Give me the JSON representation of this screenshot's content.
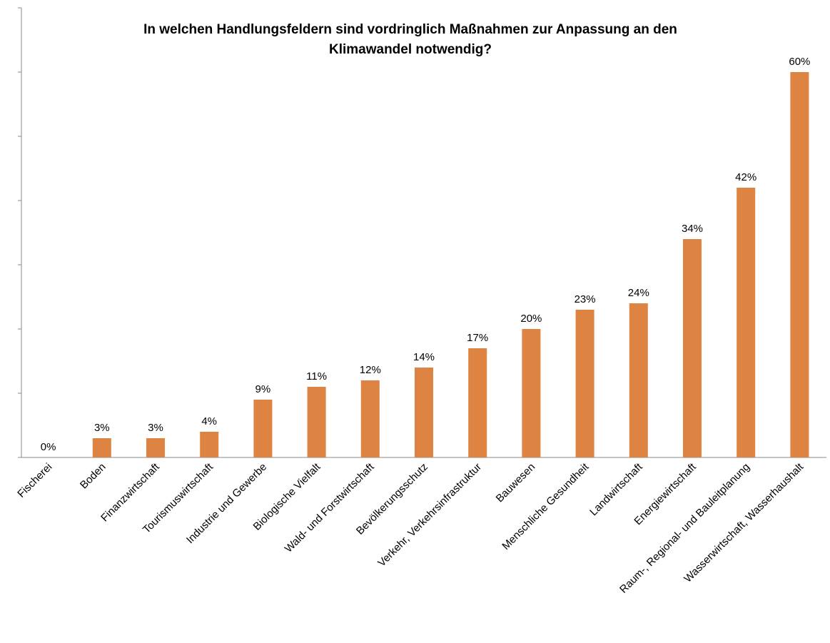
{
  "chart_data": {
    "type": "bar",
    "title": [
      "In welchen Handlungsfeldern sind vordringlich Maßnahmen zur Anpassung an den",
      "Klimawandel notwendig?"
    ],
    "categories": [
      "Fischerei",
      "Boden",
      "Finanzwirtschaft",
      "Tourismuswirtschaft",
      "Industrie und Gewerbe",
      "Biologische Vielfalt",
      "Wald- und Forstwirtschaft",
      "Bevölkerungsschutz",
      "Verkehr, Verkehrsinfrastruktur",
      "Bauwesen",
      "Menschliche Gesundheit",
      "Landwirtschaft",
      "Energiewirtschaft",
      "Raum-, Regional- und Bauleitplanung",
      "Wasserwirtschaft, Wasserhaushalt"
    ],
    "values": [
      0,
      3,
      3,
      4,
      9,
      11,
      12,
      14,
      17,
      20,
      23,
      24,
      34,
      42,
      60
    ],
    "value_labels": [
      "0%",
      "3%",
      "3%",
      "4%",
      "9%",
      "11%",
      "12%",
      "14%",
      "17%",
      "20%",
      "23%",
      "24%",
      "34%",
      "42%",
      "60%"
    ],
    "color": "#dd8443",
    "ylim": [
      0,
      70
    ],
    "yticks": [
      0,
      10,
      20,
      30,
      40,
      50,
      60,
      70
    ],
    "grid": false
  }
}
